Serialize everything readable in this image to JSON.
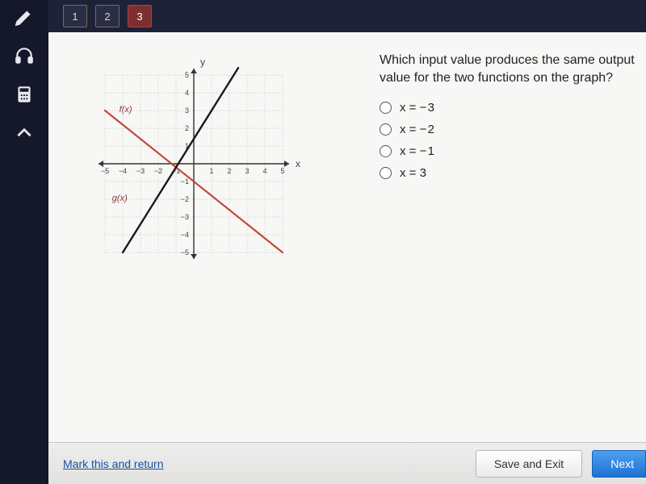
{
  "rail": {
    "items": [
      {
        "name": "pencil-icon"
      },
      {
        "name": "headphones-icon"
      },
      {
        "name": "calculator-icon"
      },
      {
        "name": "collapse-icon"
      }
    ]
  },
  "pager": {
    "buttons": [
      {
        "label": "1",
        "current": false
      },
      {
        "label": "2",
        "current": false
      },
      {
        "label": "3",
        "current": true
      }
    ]
  },
  "graph": {
    "x_label": "x",
    "y_label": "y",
    "xlim": [
      -5,
      5
    ],
    "ylim": [
      -5,
      5
    ],
    "tick_step": 1,
    "grid_color": "#b8b8b8",
    "axis_color": "#333333",
    "background_color": "#f7f7f5",
    "func_labels": {
      "f": "f(x)",
      "g": "g(x)"
    },
    "label_color": "#8a3a3a",
    "lines": [
      {
        "name": "line-f",
        "color": "#c24a3a",
        "width": 2.2,
        "points": [
          [
            -5,
            3
          ],
          [
            5,
            -5
          ]
        ]
      },
      {
        "name": "line-g",
        "color": "#1a1a1a",
        "width": 2.4,
        "points": [
          [
            -4,
            -5
          ],
          [
            2.5,
            5.4
          ]
        ]
      }
    ]
  },
  "question": {
    "text": "Which input value produces the same output value for the two functions on the graph?",
    "options": [
      {
        "id": "a",
        "label": "x = − 3"
      },
      {
        "id": "b",
        "label": "x = − 2"
      },
      {
        "id": "c",
        "label": "x = − 1"
      },
      {
        "id": "d",
        "label": "x = 3"
      }
    ]
  },
  "footer": {
    "mark_link": "Mark this and return",
    "save_exit": "Save and Exit",
    "next": "Next"
  }
}
